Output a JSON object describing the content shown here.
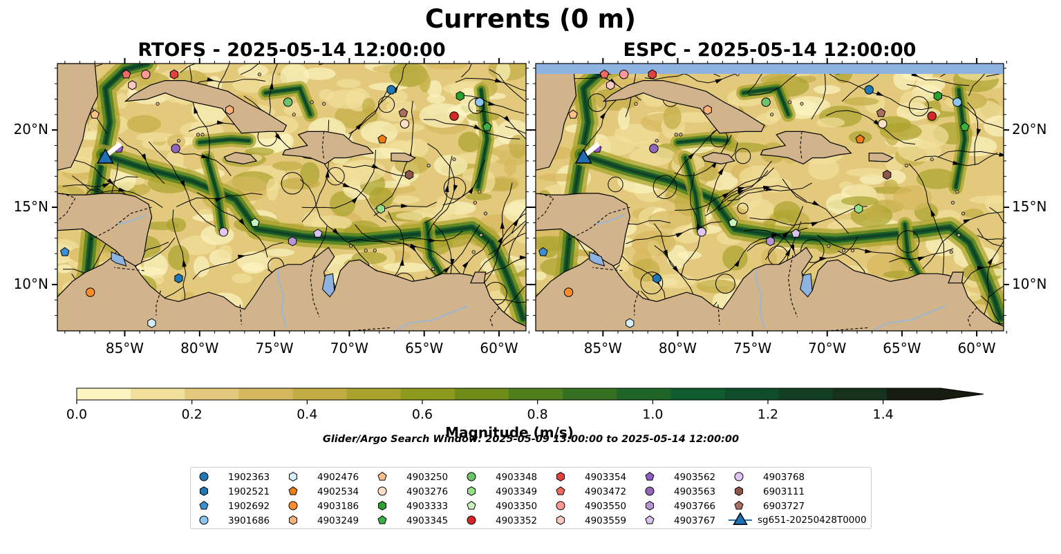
{
  "figure": {
    "title": "Currents (0 m)"
  },
  "panels": [
    {
      "model": "RTOFS",
      "title": "RTOFS - 2025-05-14 12:00:00",
      "top_strip": false
    },
    {
      "model": "ESPC",
      "title": "ESPC - 2025-05-14 12:00:00",
      "top_strip": true
    }
  ],
  "map": {
    "extent": {
      "lon_min": -89.5,
      "lon_max": -58.2,
      "lat_min": 7.0,
      "lat_max": 24.3
    },
    "lon_ticks": [
      {
        "value": -85,
        "label": "85°W"
      },
      {
        "value": -80,
        "label": "80°W"
      },
      {
        "value": -75,
        "label": "75°W"
      },
      {
        "value": -70,
        "label": "70°W"
      },
      {
        "value": -65,
        "label": "65°W"
      },
      {
        "value": -60,
        "label": "60°W"
      }
    ],
    "lat_ticks": [
      {
        "value": 20,
        "label": "20°N"
      },
      {
        "value": 15,
        "label": "15°N"
      },
      {
        "value": 10,
        "label": "10°N"
      }
    ],
    "colors": {
      "land": "#d2b48c",
      "ocean_strip": "#8fb3e0",
      "lake": "#8fb3e0",
      "river": "#9bb7d4"
    }
  },
  "colorbar": {
    "label": "Magnitude (m/s)",
    "min": 0.0,
    "max": 1.5,
    "extend": "max",
    "ticks": [
      "0.0",
      "0.2",
      "0.4",
      "0.6",
      "0.8",
      "1.0",
      "1.2",
      "1.4"
    ],
    "colors": [
      "#fbf3c0",
      "#f1df9c",
      "#e3c97b",
      "#d5b85e",
      "#c2ad44",
      "#a9a32d",
      "#8d9a1e",
      "#6f8c19",
      "#4f7e1c",
      "#357020",
      "#1f6427",
      "#105b2d",
      "#0f4d2a",
      "#123f24",
      "#16311c",
      "#161c0f"
    ]
  },
  "search_window": "Glider/Argo Search Window: 2025-05-09 13:00:00 to 2025-05-14 12:00:00",
  "glider": {
    "id": "sg651-20250428T0000",
    "lon": -86.3,
    "lat": 18.3,
    "color": "#1f6fb4"
  },
  "floats": [
    {
      "id": "1902363",
      "marker": "circle",
      "color": "#1f77b4",
      "lon": -67.2,
      "lat": 22.6
    },
    {
      "id": "1902521",
      "marker": "hexagon",
      "color": "#1f77b4",
      "lon": -81.4,
      "lat": 10.4
    },
    {
      "id": "1902692",
      "marker": "pentagon",
      "color": "#3a8fd1",
      "lon": -89.0,
      "lat": 12.1
    },
    {
      "id": "3901686",
      "marker": "circle",
      "color": "#8cc5ee",
      "lon": -61.3,
      "lat": 21.8
    },
    {
      "id": "4902476",
      "marker": "hexagon",
      "color": "#d5ecfb",
      "lon": -83.2,
      "lat": 7.5
    },
    {
      "id": "4902534",
      "marker": "pentagon",
      "color": "#f07d12",
      "lon": -67.8,
      "lat": 19.4
    },
    {
      "id": "4903186",
      "marker": "circle",
      "color": "#ff8c2a",
      "lon": -87.3,
      "lat": 9.5
    },
    {
      "id": "4903249",
      "marker": "hexagon",
      "color": "#fbb27a",
      "lon": -78.0,
      "lat": 21.3
    },
    {
      "id": "4903250",
      "marker": "pentagon",
      "color": "#ffbf8a",
      "lon": -87.0,
      "lat": 21.0
    },
    {
      "id": "4903276",
      "marker": "circle",
      "color": "#fde0c5",
      "lon": -66.3,
      "lat": 20.4
    },
    {
      "id": "4903333",
      "marker": "hexagon",
      "color": "#2ca02c",
      "lon": -62.6,
      "lat": 22.2
    },
    {
      "id": "4903345",
      "marker": "pentagon",
      "color": "#3cb043",
      "lon": -60.8,
      "lat": 20.2
    },
    {
      "id": "4903348",
      "marker": "circle",
      "color": "#6cc36c",
      "lon": -74.1,
      "lat": 21.8
    },
    {
      "id": "4903349",
      "marker": "hexagon",
      "color": "#98df8a",
      "lon": -67.9,
      "lat": 14.9
    },
    {
      "id": "4903350",
      "marker": "pentagon",
      "color": "#c9f2bd",
      "lon": -76.3,
      "lat": 14.0
    },
    {
      "id": "4903352",
      "marker": "circle",
      "color": "#d62728",
      "lon": -63.0,
      "lat": 20.9
    },
    {
      "id": "4903354",
      "marker": "hexagon",
      "color": "#e0433e",
      "lon": -81.7,
      "lat": 23.6
    },
    {
      "id": "4903472",
      "marker": "pentagon",
      "color": "#f06a64",
      "lon": -84.9,
      "lat": 23.6
    },
    {
      "id": "4903550",
      "marker": "circle",
      "color": "#ff9896",
      "lon": -83.6,
      "lat": 23.6
    },
    {
      "id": "4903559",
      "marker": "hexagon",
      "color": "#fcc9c2",
      "lon": -84.5,
      "lat": 22.9
    },
    {
      "id": "4903562",
      "marker": "pentagon",
      "color": "#8e5cc2",
      "lon": -85.4,
      "lat": 18.8
    },
    {
      "id": "4903563",
      "marker": "circle",
      "color": "#9467bd",
      "lon": -81.6,
      "lat": 18.8
    },
    {
      "id": "4903766",
      "marker": "hexagon",
      "color": "#b694d6",
      "lon": -73.8,
      "lat": 12.8
    },
    {
      "id": "4903767",
      "marker": "pentagon",
      "color": "#d9c2f0",
      "lon": -72.1,
      "lat": 13.3
    },
    {
      "id": "4903768",
      "marker": "circle",
      "color": "#e0c6f4",
      "lon": -78.4,
      "lat": 13.4
    },
    {
      "id": "6903111",
      "marker": "hexagon",
      "color": "#8c564b",
      "lon": -66.0,
      "lat": 17.1
    },
    {
      "id": "6903727",
      "marker": "pentagon",
      "color": "#a8705f",
      "lon": -66.4,
      "lat": 21.1
    }
  ]
}
